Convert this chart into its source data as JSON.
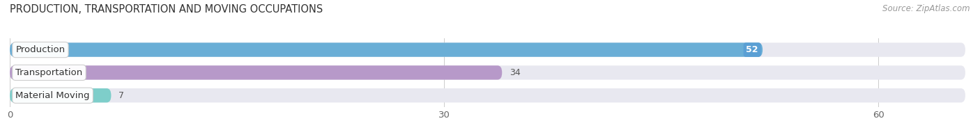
{
  "title": "PRODUCTION, TRANSPORTATION AND MOVING OCCUPATIONS",
  "source": "Source: ZipAtlas.com",
  "categories": [
    "Production",
    "Transportation",
    "Material Moving"
  ],
  "values": [
    52,
    34,
    7
  ],
  "bar_colors": [
    "#6aaed6",
    "#b799c9",
    "#7ececa"
  ],
  "bar_bg_color": "#e8e8f0",
  "value_bubble_color": "#5a9fd4",
  "xlim": [
    0,
    66
  ],
  "xticks": [
    0,
    30,
    60
  ],
  "value_label_inside": [
    true,
    false,
    false
  ],
  "title_fontsize": 10.5,
  "source_fontsize": 8.5,
  "tick_fontsize": 9.5,
  "bar_label_fontsize": 9,
  "category_fontsize": 9.5,
  "background_color": "#ffffff",
  "bar_height": 0.62,
  "bar_bg_alpha": 1.0
}
